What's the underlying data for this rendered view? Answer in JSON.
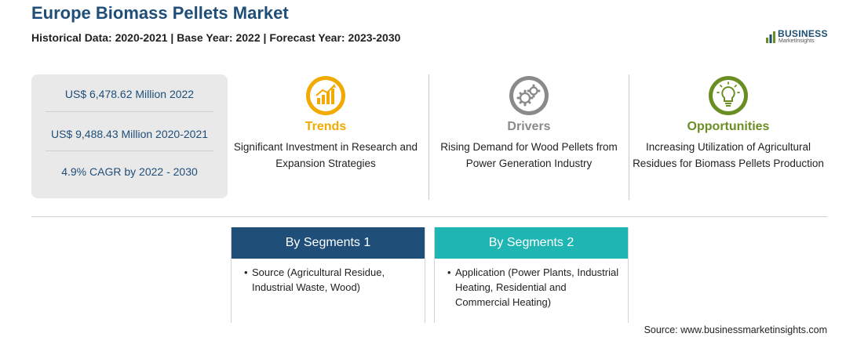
{
  "header": {
    "title": "Europe Biomass Pellets Market",
    "subtitle": "Historical Data: 2020-2021 | Base Year: 2022 | Forecast Year: 2023-2030"
  },
  "logo": {
    "line1": "BUSINESS",
    "line2": "MarketInsights"
  },
  "stats": [
    "US$ 6,478.62 Million 2022",
    "US$ 9,488.43 Million 2020-2021",
    "4.9% CAGR by 2022 - 2030"
  ],
  "factors": [
    {
      "label": "Trends",
      "icon": "growth-chart-icon",
      "color": "#f2a900",
      "description": "Significant Investment in Research and Expansion Strategies"
    },
    {
      "label": "Drivers",
      "icon": "gears-icon",
      "color": "#8a8a8a",
      "description": "Rising Demand for Wood Pellets from Power Generation Industry"
    },
    {
      "label": "Opportunities",
      "icon": "lightbulb-icon",
      "color": "#6b8e23",
      "description": "Increasing Utilization of Agricultural Residues for Biomass Pellets Production"
    }
  ],
  "segments": [
    {
      "title": "By Segments 1",
      "color": "#1f4e79",
      "items": [
        "Source (Agricultural Residue, Industrial Waste, Wood)"
      ]
    },
    {
      "title": "By Segments 2",
      "color": "#1fb5b3",
      "items": [
        "Application (Power Plants, Industrial Heating, Residential and Commercial Heating)"
      ]
    }
  ],
  "source": "Source: www.businessmarketinsights.com"
}
